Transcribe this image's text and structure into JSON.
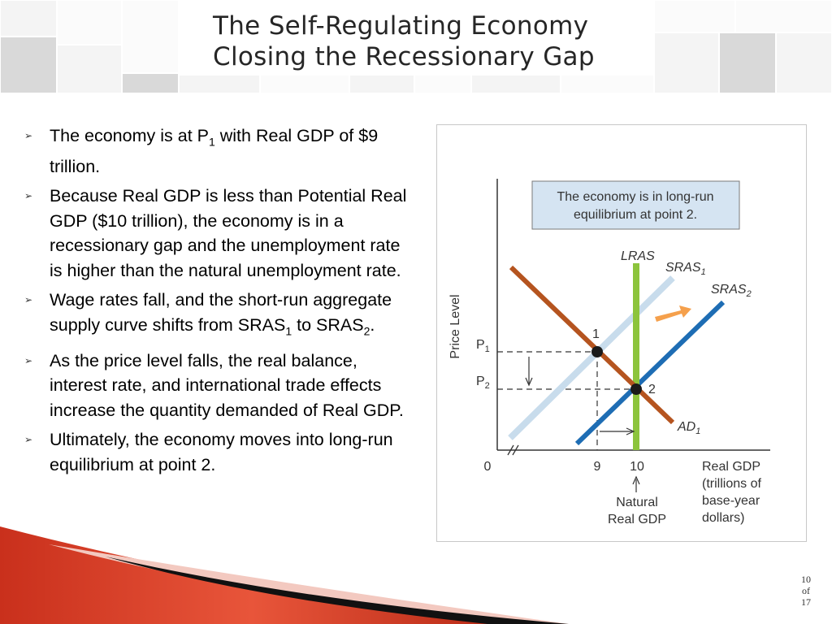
{
  "slide": {
    "title_line1": "The Self-Regulating Economy",
    "title_line2": "Closing the Recessionary Gap",
    "page_number": {
      "current": "10",
      "of": "of",
      "total": "17"
    }
  },
  "bullets": [
    {
      "parts": [
        {
          "t": "The economy is at P"
        },
        {
          "sub": "1"
        },
        {
          "t": " with Real GDP of $9 trillion."
        }
      ]
    },
    {
      "parts": [
        {
          "t": "Because Real GDP is less than Potential Real GDP ($10 trillion), the economy is in a recessionary gap and the unemployment rate is higher than the natural unemployment rate."
        }
      ]
    },
    {
      "parts": [
        {
          "t": "Wage rates fall, and the short-run aggregate supply curve shifts from SRAS"
        },
        {
          "sub": "1"
        },
        {
          "t": " to SRAS"
        },
        {
          "sub": "2"
        },
        {
          "t": "."
        }
      ]
    },
    {
      "parts": [
        {
          "t": " As the price level falls, the real balance, interest rate, and international trade effects increase the quantity demanded of Real GDP."
        }
      ]
    },
    {
      "parts": [
        {
          "t": "Ultimately, the economy moves into long-run equilibrium at point 2."
        }
      ]
    }
  ],
  "diagram": {
    "callout": [
      "The economy is in long-run",
      "equilibrium at point 2."
    ],
    "y_axis_label": "Price Level",
    "origin_label": "0",
    "p1": "P",
    "p1_sub": "1",
    "p2": "P",
    "p2_sub": "2",
    "point1": "1",
    "point2": "2",
    "lras": "LRAS",
    "sras1": "SRAS",
    "sras1_sub": "1",
    "sras2": "SRAS",
    "sras2_sub": "2",
    "ad1": "AD",
    "ad1_sub": "1",
    "tick_9": "9",
    "tick_10": "10",
    "x_axis_label": [
      "Real GDP",
      "(trillions of",
      "base-year",
      "dollars)"
    ],
    "natural_label": [
      "Natural",
      "Real GDP"
    ],
    "colors": {
      "ad": "#b5541f",
      "sras1": "#c8dcec",
      "sras2": "#1e6db4",
      "lras": "#8cc43c",
      "callout_bg": "#d5e4f2",
      "shift_arrow": "#f5a04c"
    }
  }
}
